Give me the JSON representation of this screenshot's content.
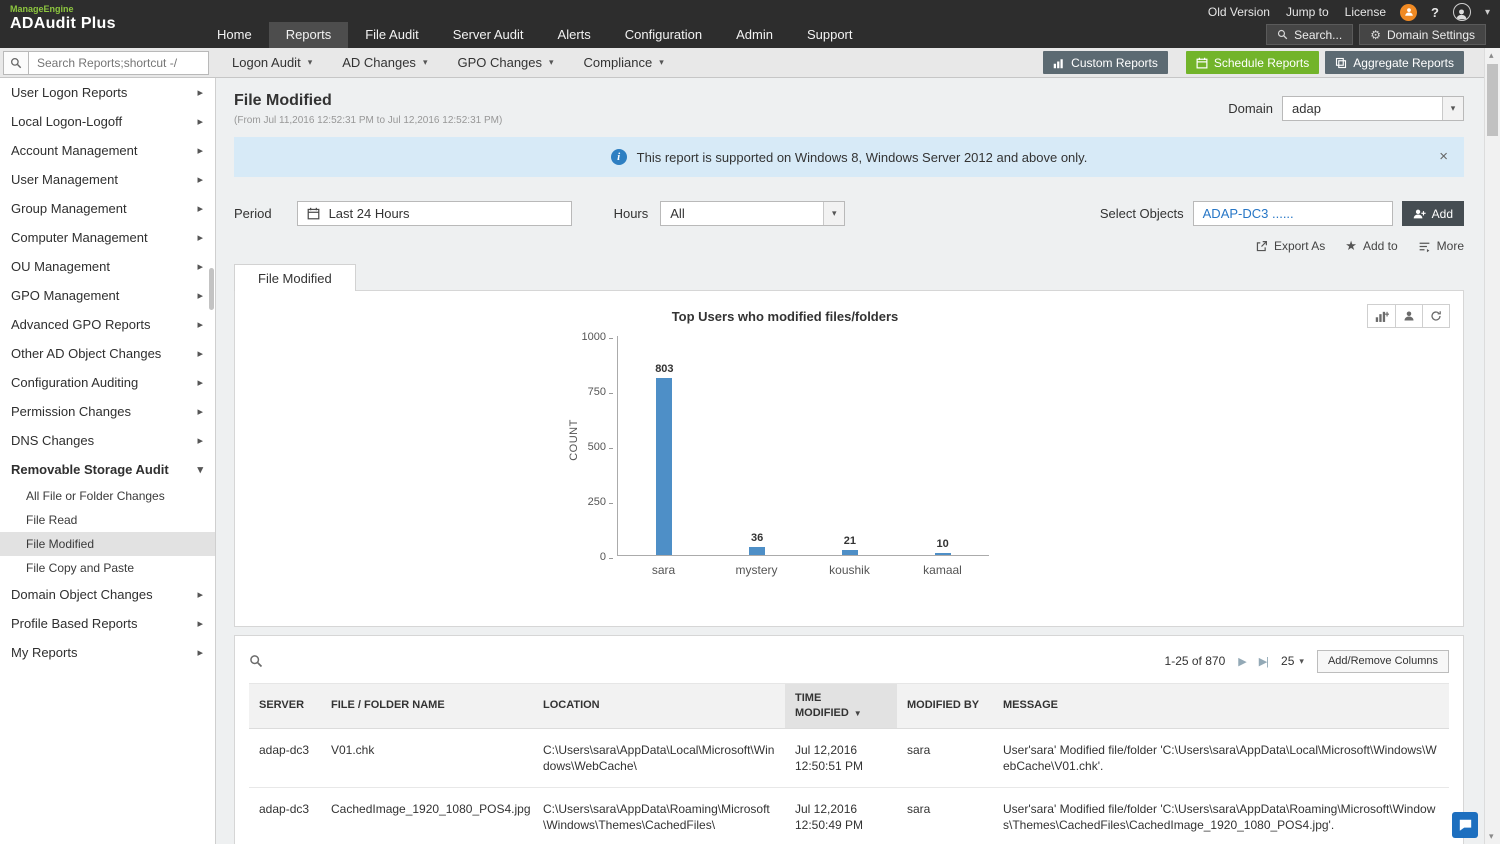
{
  "icons": {
    "caret_down": "▾",
    "caret_up": "▴",
    "chevron_right": "▸",
    "close": "×",
    "star": "★",
    "question": "?",
    "gear": "⚙",
    "next": "▶",
    "last": "▶|",
    "sort_desc": "▼"
  },
  "colors": {
    "accent_green": "#72b42a",
    "topbar": "#2d2d2d",
    "banner_blue": "#d7eaf7",
    "link_blue": "#2676c6",
    "bar_blue": "#4e8fc7"
  },
  "topbar": {
    "brand_line1": "ManageEngine",
    "brand_line2": "ADAudit Plus",
    "nav": [
      {
        "label": "Home",
        "active": false
      },
      {
        "label": "Reports",
        "active": true
      },
      {
        "label": "File Audit",
        "active": false
      },
      {
        "label": "Server Audit",
        "active": false
      },
      {
        "label": "Alerts",
        "active": false
      },
      {
        "label": "Configuration",
        "active": false
      },
      {
        "label": "Admin",
        "active": false
      },
      {
        "label": "Support",
        "active": false
      }
    ],
    "utility_links": [
      "Old Version",
      "Jump to",
      "License"
    ],
    "search_button": "Search...",
    "domain_settings_button": "Domain Settings"
  },
  "toolbar": {
    "search_placeholder": "Search Reports;shortcut -/",
    "menus": [
      "Logon Audit",
      "AD Changes",
      "GPO Changes",
      "Compliance"
    ],
    "custom_reports": "Custom Reports",
    "schedule_reports": "Schedule Reports",
    "aggregate_reports": "Aggregate Reports"
  },
  "sidebar": {
    "items": [
      {
        "label": "User Logon Reports"
      },
      {
        "label": "Local Logon-Logoff"
      },
      {
        "label": "Account Management"
      },
      {
        "label": "User Management"
      },
      {
        "label": "Group Management"
      },
      {
        "label": "Computer Management"
      },
      {
        "label": "OU Management"
      },
      {
        "label": "GPO Management"
      },
      {
        "label": "Advanced GPO Reports"
      },
      {
        "label": "Other AD Object Changes"
      },
      {
        "label": "Configuration Auditing"
      },
      {
        "label": "Permission Changes"
      },
      {
        "label": "DNS Changes"
      },
      {
        "label": "Removable Storage Audit",
        "expanded": true,
        "children": [
          {
            "label": "All File or Folder Changes",
            "active": false
          },
          {
            "label": "File Read",
            "active": false
          },
          {
            "label": "File Modified",
            "active": true
          },
          {
            "label": "File Copy and Paste",
            "active": false
          }
        ]
      },
      {
        "label": "Domain Object Changes"
      },
      {
        "label": "Profile Based Reports"
      },
      {
        "label": "My Reports"
      }
    ]
  },
  "page": {
    "title": "File Modified",
    "subtitle": "(From Jul 11,2016 12:52:31 PM to Jul 12,2016 12:52:31 PM)",
    "domain_label": "Domain",
    "domain_value": "adap",
    "banner_text": "This report is supported on Windows 8, Windows Server 2012 and above only.",
    "period_label": "Period",
    "period_value": "Last 24 Hours",
    "hours_label": "Hours",
    "hours_value": "All",
    "select_objects_label": "Select Objects",
    "select_objects_value": "ADAP-DC3 ......",
    "add_button": "Add",
    "export_as": "Export As",
    "add_to": "Add to",
    "more": "More",
    "report_tab": "File Modified"
  },
  "chart_data": {
    "type": "bar",
    "title": "Top Users who modified files/folders",
    "categories": [
      "sara",
      "mystery",
      "koushik",
      "kamaal"
    ],
    "values": [
      803,
      36,
      21,
      10
    ],
    "xlabel": "",
    "ylabel": "COUNT",
    "ylim": [
      0,
      1000
    ],
    "yticks": [
      0,
      250,
      500,
      750,
      1000
    ],
    "bar_color": "#4e8fc7",
    "grid": false,
    "legend": false
  },
  "table": {
    "pagination": "1-25 of 870",
    "page_size": "25",
    "add_remove_columns": "Add/Remove Columns",
    "headers": [
      "SERVER",
      "FILE / FOLDER NAME",
      "LOCATION",
      "TIME MODIFIED",
      "MODIFIED BY",
      "MESSAGE"
    ],
    "sorted_column": "TIME MODIFIED",
    "sort_direction": "desc",
    "rows": [
      {
        "server": "adap-dc3",
        "file": "V01.chk",
        "location": "C:\\Users\\sara\\AppData\\Local\\Microsoft\\Windows\\WebCache\\",
        "time": "Jul 12,2016 12:50:51 PM",
        "by": "sara",
        "message": "User'sara' Modified file/folder 'C:\\Users\\sara\\AppData\\Local\\Microsoft\\Windows\\WebCache\\V01.chk'."
      },
      {
        "server": "adap-dc3",
        "file": "CachedImage_1920_1080_POS4.jpg",
        "location": "C:\\Users\\sara\\AppData\\Roaming\\Microsoft\\Windows\\Themes\\CachedFiles\\",
        "time": "Jul 12,2016 12:50:49 PM",
        "by": "sara",
        "message": "User'sara' Modified file/folder 'C:\\Users\\sara\\AppData\\Roaming\\Microsoft\\Windows\\Themes\\CachedFiles\\CachedImage_1920_1080_POS4.jpg'."
      }
    ]
  }
}
